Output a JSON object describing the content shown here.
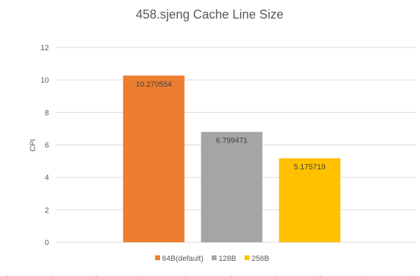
{
  "chart_data": {
    "type": "bar",
    "title": "458.sjeng Cache Line Size",
    "xlabel": "",
    "ylabel": "CPI",
    "ylim": [
      0,
      12
    ],
    "yticks": [
      0,
      2,
      4,
      6,
      8,
      10,
      12
    ],
    "grid": true,
    "legend_position": "bottom",
    "series": [
      {
        "name": "64B(default)",
        "value": 10.270554,
        "label": "10.270554",
        "color": "#ED7D31"
      },
      {
        "name": "128B",
        "value": 6.799471,
        "label": "6.799471",
        "color": "#A5A5A5"
      },
      {
        "name": "256B",
        "value": 5.175719,
        "label": "5.175719",
        "color": "#FFC000"
      }
    ]
  }
}
